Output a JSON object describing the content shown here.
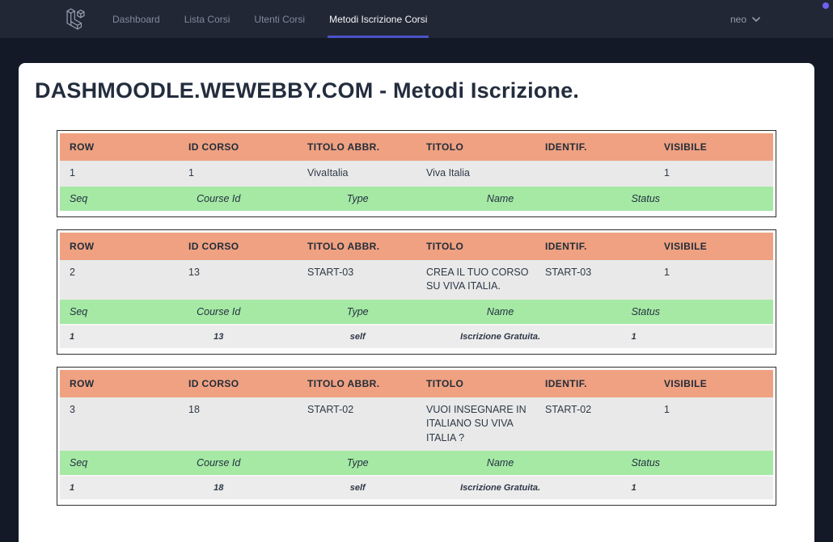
{
  "navbar": {
    "logo_icon": "laravel-logo-icon",
    "items": [
      {
        "label": "Dashboard",
        "active": false
      },
      {
        "label": "Lista Corsi",
        "active": false
      },
      {
        "label": "Utenti Corsi",
        "active": false
      },
      {
        "label": "Metodi Iscrizione Corsi",
        "active": true
      }
    ],
    "user_menu": {
      "name": "neo",
      "chevron_icon": "chevron-down-icon"
    }
  },
  "page": {
    "title": "DASHMOODLE.WEWEBBY.COM - Metodi Iscrizione."
  },
  "table_headers": {
    "course": [
      "ROW",
      "ID CORSO",
      "TITOLO ABBR.",
      "TITOLO",
      "IDENTIF.",
      "VISIBILE"
    ],
    "method": [
      "Seq",
      "Course Id",
      "Type",
      "Name",
      "Status"
    ]
  },
  "tables": [
    {
      "course_row": [
        "1",
        "1",
        "VivaItalia",
        "Viva Italia",
        "",
        "1"
      ],
      "method_rows": []
    },
    {
      "course_row": [
        "2",
        "13",
        "START-03",
        "CREA IL TUO CORSO SU VIVA ITALIA.",
        "START-03",
        "1"
      ],
      "method_rows": [
        [
          "1",
          "13",
          "self",
          "Iscrizione Gratuita.",
          "1"
        ]
      ]
    },
    {
      "course_row": [
        "3",
        "18",
        "START-02",
        "VUOI INSEGNARE IN ITALIANO SU VIVA ITALIA ?",
        "START-02",
        "1"
      ],
      "method_rows": [
        [
          "1",
          "18",
          "self",
          "Iscrizione Gratuita.",
          "1"
        ]
      ]
    }
  ],
  "colors": {
    "page_bg": "#131927",
    "navbar_bg": "#212735",
    "card_bg": "#ffffff",
    "accent": "#4b54c8",
    "orange_header": "#efa181",
    "green_header": "#a5e9a4",
    "row_bg": "#e9e9e9",
    "method_row_bg": "#ececec",
    "title_color": "#232d3d",
    "indicator_dot": "#6e61f0"
  }
}
